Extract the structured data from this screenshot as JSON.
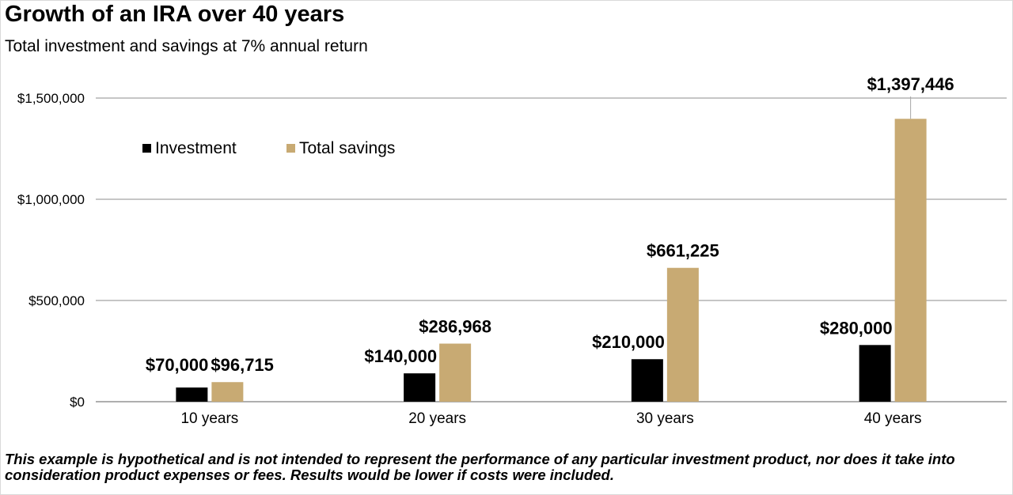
{
  "chart_data": {
    "type": "bar",
    "title": "Growth of an IRA over 40 years",
    "subtitle": "Total investment and savings at 7% annual return",
    "categories": [
      "10 years",
      "20 years",
      "30 years",
      "40 years"
    ],
    "series": [
      {
        "name": "Investment",
        "color": "#000000",
        "values": [
          70000,
          140000,
          210000,
          280000
        ],
        "labels": [
          "$70,000",
          "$140,000",
          "$210,000",
          "$280,000"
        ]
      },
      {
        "name": "Total savings",
        "color": "#c8aa73",
        "values": [
          96715,
          286968,
          661225,
          1397446
        ],
        "labels": [
          "$96,715",
          "$286,968",
          "$661,225",
          "$1,397,446"
        ]
      }
    ],
    "ylim": [
      0,
      1500000
    ],
    "yticks": [
      0,
      500000,
      1000000,
      1500000
    ],
    "ytick_labels": [
      "$0",
      "$500,000",
      "$1,000,000",
      "$1,500,000"
    ],
    "xlabel": "",
    "ylabel": "",
    "grid": true,
    "legend_position": "top-left"
  },
  "footnote": "This example is hypothetical and is not intended to represent the performance of any particular investment product, nor does it take into consideration product expenses or fees. Results would be lower if costs were included."
}
